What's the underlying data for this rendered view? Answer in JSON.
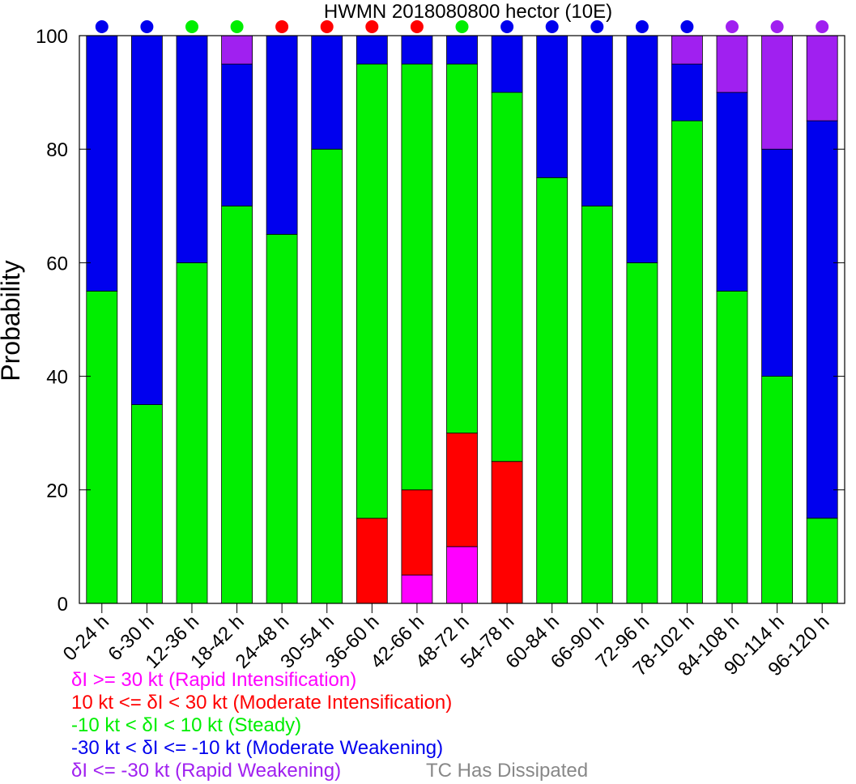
{
  "chart_data": {
    "type": "bar",
    "stacked": true,
    "title": "HWMN 2018080800 hector (10E)",
    "ylabel": "Probability",
    "ylim": [
      0,
      100
    ],
    "yticks": [
      "0",
      "20",
      "40",
      "60",
      "80",
      "100"
    ],
    "categories": [
      "0-24 h",
      "6-30 h",
      "12-36 h",
      "18-42 h",
      "24-48 h",
      "30-54 h",
      "36-60 h",
      "42-66 h",
      "48-72 h",
      "54-78 h",
      "60-84 h",
      "66-90 h",
      "72-96 h",
      "78-102 h",
      "84-108 h",
      "90-114 h",
      "96-120 h"
    ],
    "series": [
      {
        "key": "ri",
        "color": "#ff00ff",
        "values": [
          0,
          0,
          0,
          0,
          0,
          0,
          0,
          5,
          10,
          0,
          0,
          0,
          0,
          0,
          0,
          0,
          0
        ]
      },
      {
        "key": "mi",
        "color": "#ff0000",
        "values": [
          0,
          0,
          0,
          0,
          0,
          0,
          15,
          15,
          20,
          25,
          0,
          0,
          0,
          0,
          0,
          0,
          0
        ]
      },
      {
        "key": "st",
        "color": "#00ee00",
        "values": [
          55,
          35,
          60,
          70,
          65,
          80,
          80,
          75,
          65,
          65,
          75,
          70,
          60,
          85,
          55,
          40,
          15
        ]
      },
      {
        "key": "mw",
        "color": "#0000ee",
        "values": [
          45,
          65,
          40,
          25,
          35,
          20,
          5,
          5,
          5,
          10,
          25,
          30,
          40,
          10,
          35,
          40,
          70
        ]
      },
      {
        "key": "rw",
        "color": "#a020f0",
        "values": [
          0,
          0,
          0,
          5,
          0,
          0,
          0,
          0,
          0,
          0,
          0,
          0,
          0,
          5,
          10,
          20,
          15
        ]
      }
    ],
    "dot_colors": [
      "#0000ee",
      "#0000ee",
      "#00ee00",
      "#00ee00",
      "#ff0000",
      "#ff0000",
      "#ff0000",
      "#ff0000",
      "#00ee00",
      "#0000ee",
      "#0000ee",
      "#0000ee",
      "#0000ee",
      "#0000ee",
      "#a020f0",
      "#a020f0",
      "#a020f0"
    ]
  },
  "legend": {
    "ri": {
      "text": "δI >= 30 kt (Rapid Intensification)",
      "color": "#ff00ff"
    },
    "mi": {
      "text": "10 kt <= δI < 30 kt (Moderate Intensification)",
      "color": "#ff0000"
    },
    "st": {
      "text": "-10 kt < δI < 10 kt (Steady)",
      "color": "#00ee00"
    },
    "mw": {
      "text": "-30 kt < δI <= -10 kt (Moderate Weakening)",
      "color": "#0000ee"
    },
    "rw": {
      "text": "δI <= -30 kt (Rapid Weakening)",
      "color": "#a020f0"
    },
    "dissipated": {
      "text": "TC Has Dissipated",
      "color": "#888888"
    }
  }
}
